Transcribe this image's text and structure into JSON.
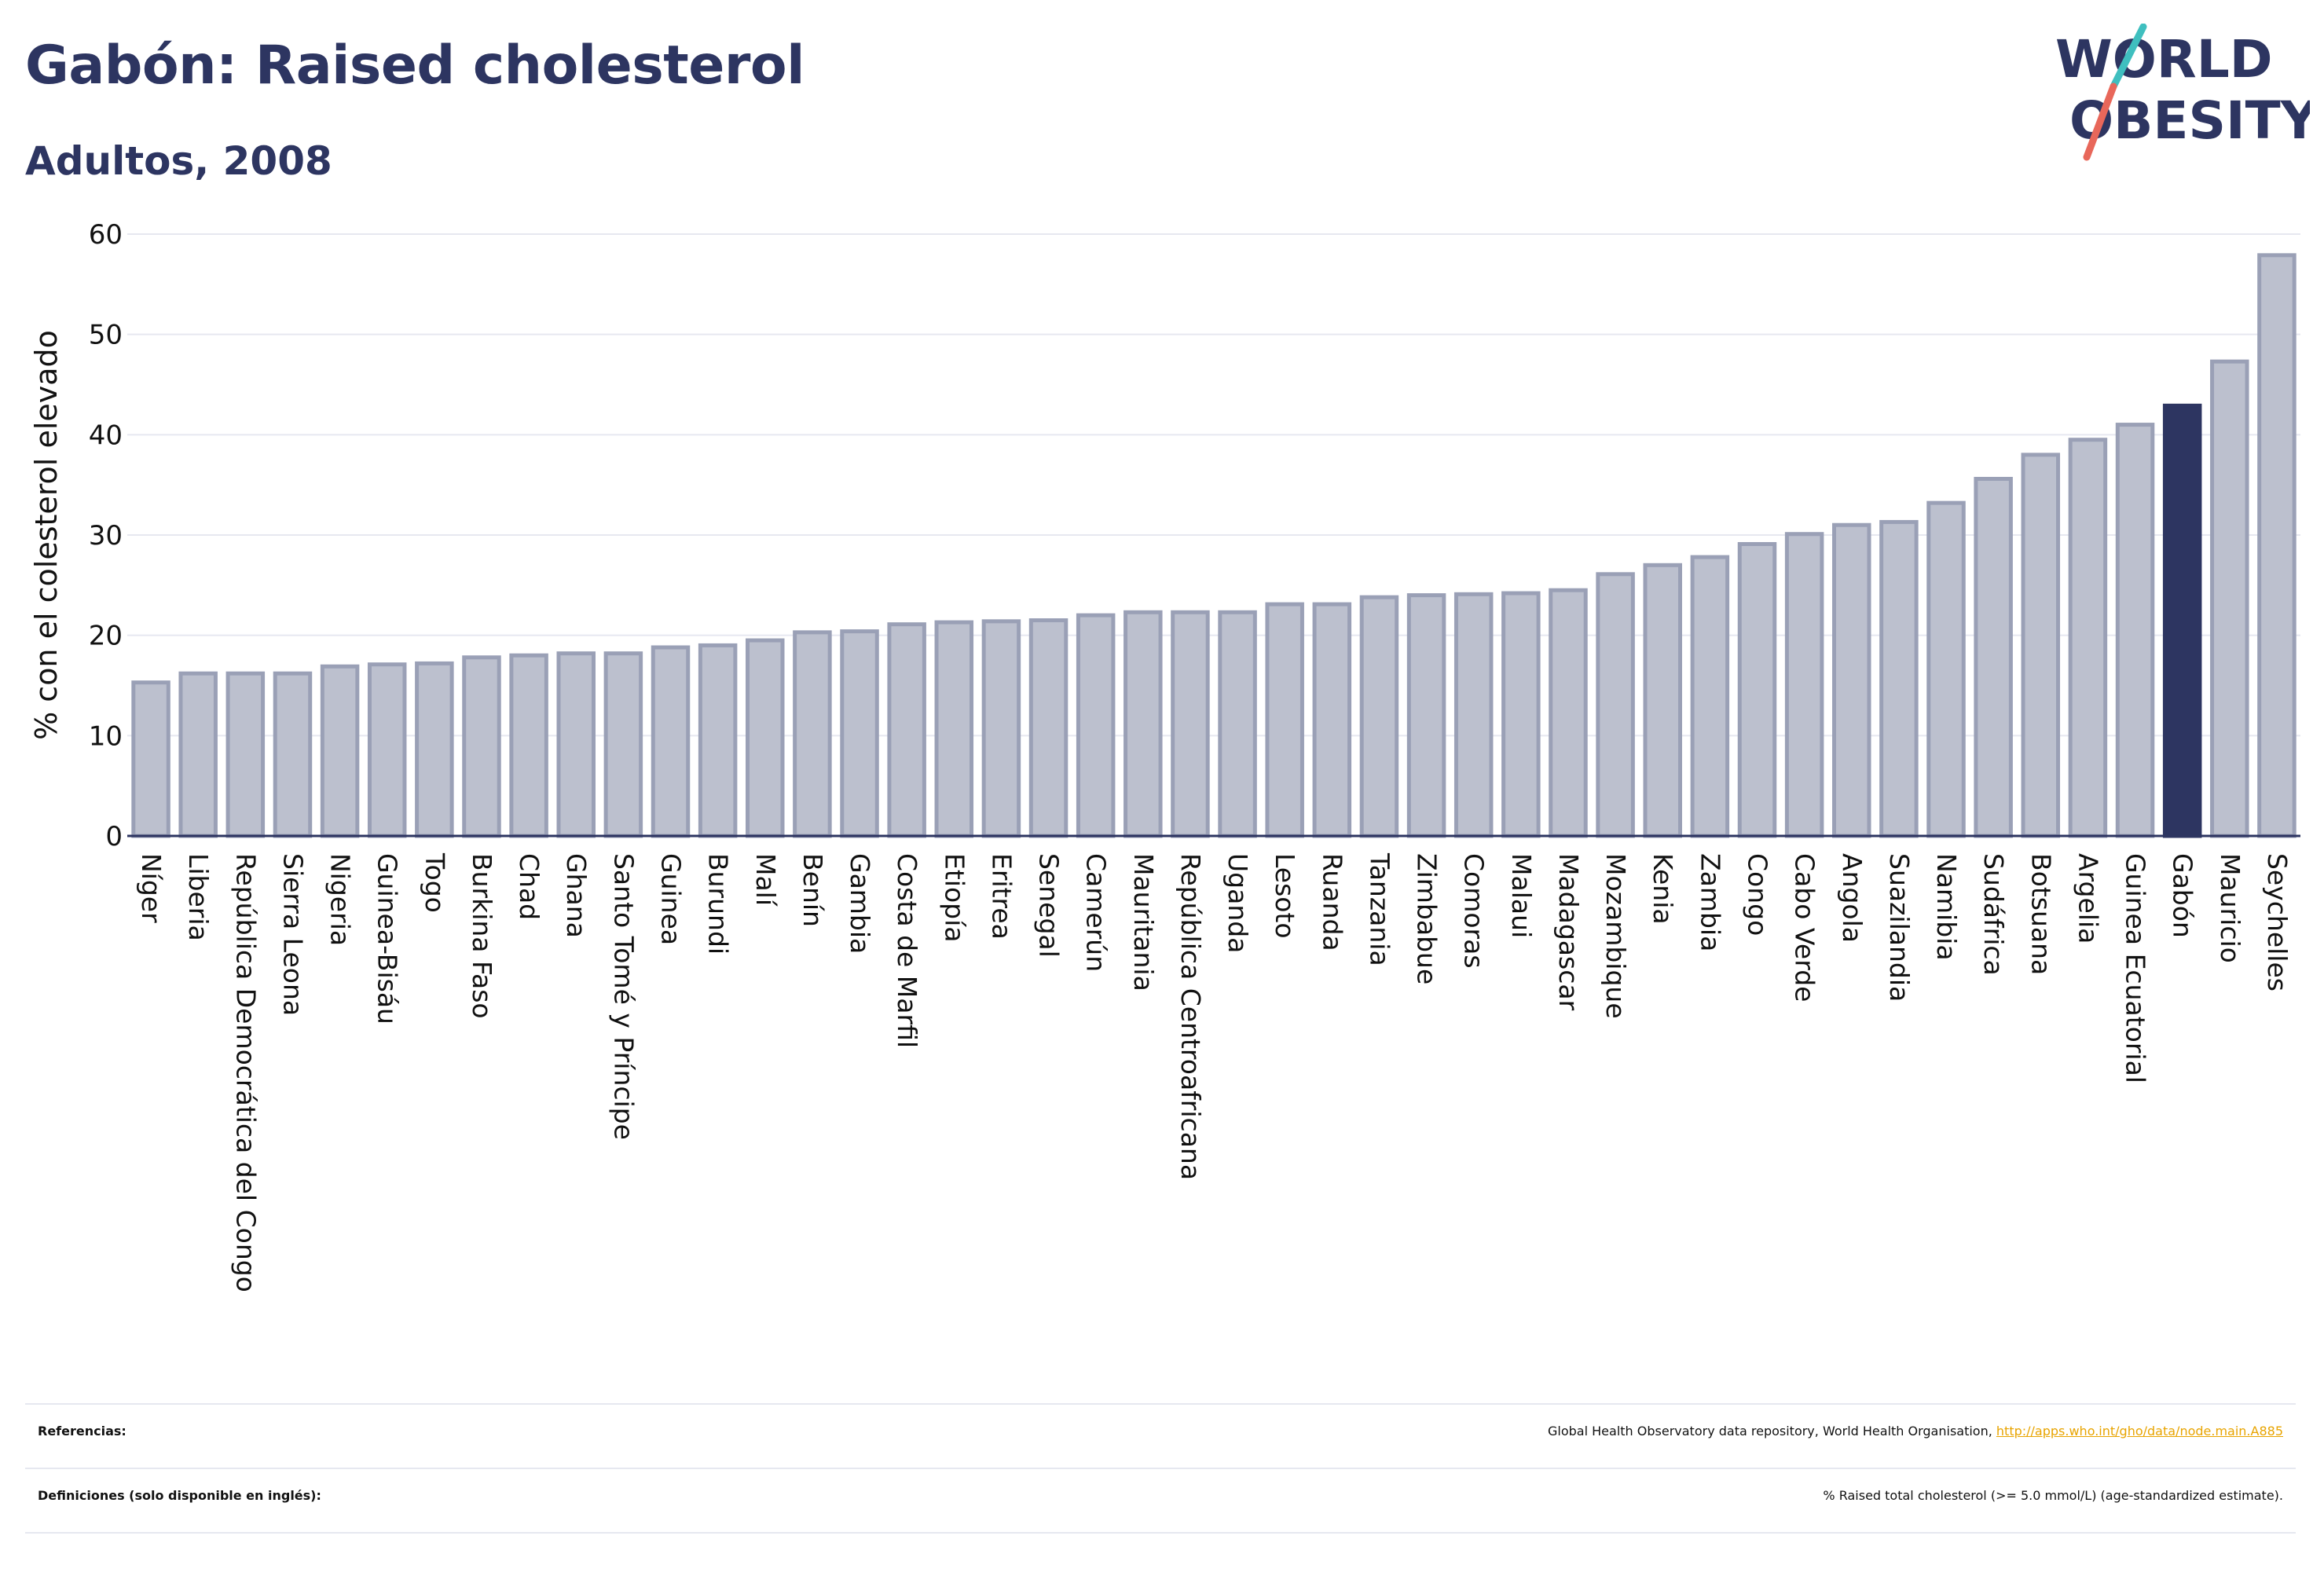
{
  "header": {
    "title": "Gabón: Raised cholesterol",
    "subtitle": "Adultos, 2008"
  },
  "logo": {
    "line1": "WORLD",
    "line2": "OBESITY"
  },
  "colors": {
    "bar": "#bcc0ce",
    "bar_edge": "#9aa0b6",
    "highlight": "#2d3561",
    "logo_text": "#2d3561",
    "logo_slash_top": "#3fbfbf",
    "logo_slash_bottom": "#e8675a",
    "link": "#e8a400"
  },
  "chart_data": {
    "type": "bar",
    "title": "Gabón: Raised cholesterol",
    "subtitle": "Adultos, 2008",
    "xlabel": "",
    "ylabel": "% con el colesterol elevado",
    "ylim": [
      0,
      60
    ],
    "yticks": [
      0,
      10,
      20,
      30,
      40,
      50,
      60
    ],
    "grid": true,
    "highlight": "Gabón",
    "categories": [
      "Níger",
      "Liberia",
      "República Democrática del Congo",
      "Sierra Leona",
      "Nigeria",
      "Guinea-Bisáu",
      "Togo",
      "Burkina Faso",
      "Chad",
      "Ghana",
      "Santo Tomé y Príncipe",
      "Guinea",
      "Burundi",
      "Malí",
      "Benín",
      "Gambia",
      "Costa de Marfil",
      "Etiopía",
      "Eritrea",
      "Senegal",
      "Camerún",
      "Mauritania",
      "República Centroafricana",
      "Uganda",
      "Lesoto",
      "Ruanda",
      "Tanzania",
      "Zimbabue",
      "Comoras",
      "Malaui",
      "Madagascar",
      "Mozambique",
      "Kenia",
      "Zambia",
      "Congo",
      "Cabo Verde",
      "Angola",
      "Suazilandia",
      "Namibia",
      "Sudáfrica",
      "Botsuana",
      "Argelia",
      "Guinea Ecuatorial",
      "Gabón",
      "Mauricio",
      "Seychelles"
    ],
    "values": [
      15.3,
      16.2,
      16.2,
      16.2,
      16.9,
      17.1,
      17.2,
      17.8,
      18.0,
      18.2,
      18.2,
      18.8,
      19.0,
      19.5,
      20.3,
      20.4,
      21.1,
      21.3,
      21.4,
      21.5,
      22.0,
      22.3,
      22.3,
      22.3,
      23.1,
      23.1,
      23.8,
      24.0,
      24.1,
      24.2,
      24.5,
      26.1,
      27.0,
      27.8,
      29.1,
      30.1,
      31.0,
      31.3,
      33.2,
      35.6,
      38.0,
      39.5,
      41.0,
      42.9,
      47.3,
      57.9
    ]
  },
  "footer": {
    "references_label": "Referencias:",
    "references_text": "Global Health Observatory data repository, World Health Organisation, ",
    "references_link": "http://apps.who.int/gho/data/node.main.A885",
    "definitions_label": "Definiciones (solo disponible en inglés):",
    "definitions_text": "% Raised total cholesterol (>= 5.0 mmol/L) (age-standardized estimate)."
  }
}
